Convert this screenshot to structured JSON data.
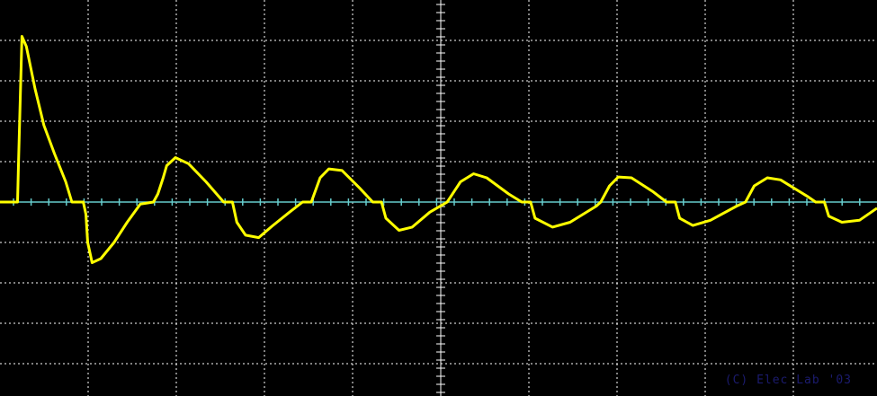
{
  "chart_data": {
    "type": "line",
    "title": "",
    "xlabel": "",
    "ylabel": "",
    "grid": true,
    "xlim": [
      0,
      10
    ],
    "ylim": [
      -4.9,
      4.9
    ],
    "trace_color": "#ffff00",
    "baseline_color": "#66cccc",
    "grid_color": "#ffffff",
    "background": "#000000",
    "series": [
      {
        "values": [
          [
            0.0,
            0.0
          ],
          [
            0.2,
            0.0
          ],
          [
            0.21,
            0.9
          ],
          [
            0.25,
            4.1
          ],
          [
            0.3,
            3.85
          ],
          [
            0.4,
            2.8
          ],
          [
            0.5,
            1.9
          ],
          [
            0.62,
            1.2
          ],
          [
            0.75,
            0.5
          ],
          [
            0.82,
            0.0
          ],
          [
            0.95,
            0.0
          ],
          [
            0.98,
            -0.3
          ],
          [
            1.0,
            -1.0
          ],
          [
            1.05,
            -1.5
          ],
          [
            1.15,
            -1.4
          ],
          [
            1.3,
            -1.0
          ],
          [
            1.45,
            -0.5
          ],
          [
            1.6,
            -0.05
          ],
          [
            1.75,
            0.0
          ],
          [
            1.8,
            0.2
          ],
          [
            1.86,
            0.6
          ],
          [
            1.9,
            0.9
          ],
          [
            2.0,
            1.1
          ],
          [
            2.15,
            0.95
          ],
          [
            2.35,
            0.5
          ],
          [
            2.55,
            0.0
          ],
          [
            2.65,
            0.0
          ],
          [
            2.7,
            -0.5
          ],
          [
            2.8,
            -0.82
          ],
          [
            2.95,
            -0.88
          ],
          [
            3.1,
            -0.6
          ],
          [
            3.3,
            -0.25
          ],
          [
            3.45,
            0.0
          ],
          [
            3.55,
            0.0
          ],
          [
            3.65,
            0.6
          ],
          [
            3.75,
            0.82
          ],
          [
            3.9,
            0.78
          ],
          [
            4.1,
            0.35
          ],
          [
            4.25,
            0.0
          ],
          [
            4.35,
            0.0
          ],
          [
            4.4,
            -0.4
          ],
          [
            4.55,
            -0.7
          ],
          [
            4.7,
            -0.62
          ],
          [
            4.9,
            -0.25
          ],
          [
            5.1,
            0.0
          ],
          [
            5.25,
            0.5
          ],
          [
            5.4,
            0.7
          ],
          [
            5.55,
            0.6
          ],
          [
            5.8,
            0.2
          ],
          [
            5.95,
            0.0
          ],
          [
            6.05,
            0.0
          ],
          [
            6.1,
            -0.4
          ],
          [
            6.3,
            -0.62
          ],
          [
            6.5,
            -0.5
          ],
          [
            6.8,
            -0.1
          ],
          [
            6.85,
            0.0
          ],
          [
            6.95,
            0.4
          ],
          [
            7.05,
            0.62
          ],
          [
            7.2,
            0.6
          ],
          [
            7.45,
            0.25
          ],
          [
            7.6,
            0.0
          ],
          [
            7.7,
            0.0
          ],
          [
            7.75,
            -0.4
          ],
          [
            7.9,
            -0.58
          ],
          [
            8.1,
            -0.45
          ],
          [
            8.4,
            -0.1
          ],
          [
            8.5,
            0.0
          ],
          [
            8.6,
            0.4
          ],
          [
            8.75,
            0.6
          ],
          [
            8.9,
            0.55
          ],
          [
            9.2,
            0.15
          ],
          [
            9.3,
            0.0
          ],
          [
            9.4,
            0.0
          ],
          [
            9.45,
            -0.35
          ],
          [
            9.6,
            -0.5
          ],
          [
            9.8,
            -0.45
          ],
          [
            10.0,
            -0.15
          ]
        ]
      }
    ]
  },
  "copyright_text": "(C) Elec Lab '03"
}
